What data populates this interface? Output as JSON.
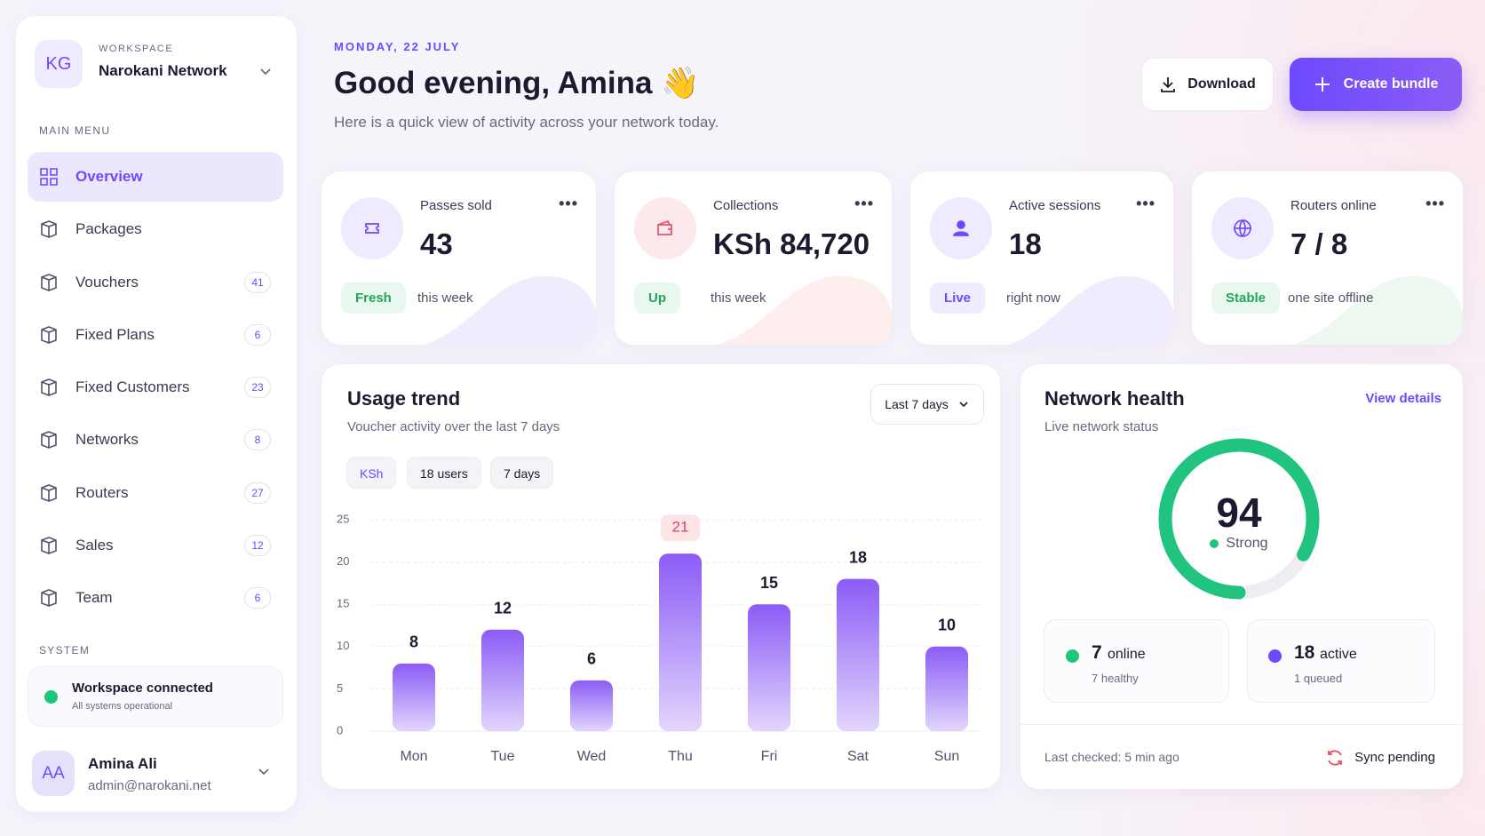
{
  "sidebar": {
    "workspace_initials": "KG",
    "workspace_label": "WORKSPACE",
    "workspace_name": "Narokani Network",
    "main_menu_label": "MAIN MENU",
    "menu": [
      {
        "label": "Overview"
      },
      {
        "label": "Packages"
      },
      {
        "label": "Vouchers",
        "count": 41
      },
      {
        "label": "Fixed Plans",
        "count": 6
      },
      {
        "label": "Fixed Customers",
        "count": 23
      },
      {
        "label": "Networks",
        "count": 8
      },
      {
        "label": "Routers",
        "count": 27
      },
      {
        "label": "Sales",
        "count": 12
      },
      {
        "label": "Team",
        "count": 6
      }
    ],
    "system_label": "SYSTEM",
    "status": {
      "title": "Workspace connected",
      "subtitle": "All systems operational"
    },
    "user": {
      "initials": "AA",
      "name": "Amina Ali",
      "email": "admin@narokani.net"
    }
  },
  "header": {
    "date": "MONDAY, 22 JULY",
    "greeting": "Good evening, Amina 👋",
    "subtitle": "Here is a quick view of activity across your network today.",
    "buttons": [
      "Download",
      "Create bundle"
    ]
  },
  "stats": [
    {
      "label": "Passes sold",
      "value": 43,
      "tag": "Fresh",
      "note": "this week"
    },
    {
      "label": "Collections",
      "value": "KSh 84,720",
      "tag": "Up",
      "note": "this week"
    },
    {
      "label": "Active sessions",
      "value": 18,
      "tag": "Live",
      "note": "right now"
    },
    {
      "label": "Routers online",
      "value": "7 / 8",
      "tag": "Stable",
      "note": "one site offline"
    }
  ],
  "chart_data": {
    "type": "bar",
    "title": "Usage trend",
    "subtitle": "Voucher activity over the last 7 days",
    "period": "Last 7 days",
    "chips": [
      "KSh",
      "18 users",
      "7 days"
    ],
    "categories": [
      "Mon",
      "Tue",
      "Wed",
      "Thu",
      "Fri",
      "Sat",
      "Sun"
    ],
    "values": [
      8,
      12,
      6,
      21,
      15,
      18,
      10
    ],
    "color": "#8b5cf6",
    "ylim": [
      0,
      25
    ],
    "yticks": [
      0,
      5,
      10,
      15,
      20,
      25
    ],
    "grid": true
  },
  "network_health": {
    "title": "Network health",
    "link": "View details",
    "subtitle": "Live network status",
    "score": 94,
    "score_label": "Strong",
    "online": {
      "count": 7,
      "label": "online",
      "note": "7 healthy"
    },
    "active": {
      "count": 18,
      "label": "active",
      "note": "1 queued"
    },
    "last_checked": "Last checked: 5 min ago",
    "sync": "Sync pending"
  }
}
